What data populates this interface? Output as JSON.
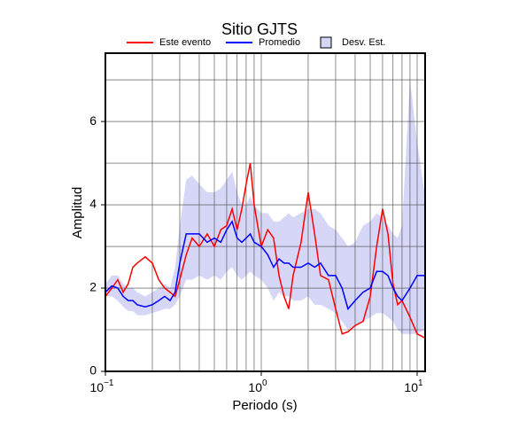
{
  "chart_data": {
    "type": "line",
    "title": "Sitio GJTS",
    "x_label": "Periodo (s)",
    "y_label": "Amplitud",
    "log_x": true,
    "grid": true,
    "xlim": [
      0.1,
      11.25
    ],
    "ylim": [
      0,
      7.64
    ],
    "xticks": [
      {
        "value": 0.1,
        "label": "10",
        "exponent": "−1"
      },
      {
        "value": 1,
        "label": "10",
        "exponent": "0"
      },
      {
        "value": 10,
        "label": "10",
        "exponent": "1"
      }
    ],
    "yticks": [
      0,
      2,
      4,
      6
    ],
    "xgrid": [
      0.2,
      0.3,
      0.4,
      0.5,
      0.6,
      0.7,
      0.8,
      0.9,
      2,
      3,
      4,
      5,
      6,
      7,
      8,
      9
    ],
    "ygrid": [
      1,
      3,
      5,
      7
    ],
    "x": [
      0.1,
      0.11,
      0.12,
      0.13,
      0.14,
      0.15,
      0.16,
      0.18,
      0.2,
      0.22,
      0.24,
      0.26,
      0.28,
      0.3,
      0.33,
      0.36,
      0.4,
      0.45,
      0.5,
      0.55,
      0.6,
      0.65,
      0.7,
      0.75,
      0.8,
      0.85,
      0.9,
      1.0,
      1.1,
      1.2,
      1.3,
      1.4,
      1.5,
      1.6,
      1.8,
      2.0,
      2.2,
      2.4,
      2.7,
      3.0,
      3.3,
      3.6,
      4.0,
      4.5,
      5.0,
      5.5,
      6.0,
      6.5,
      7.0,
      7.5,
      8.0,
      9.0,
      10,
      11.25
    ],
    "band": {
      "name": "Desv. Est.",
      "color": "#d6d6f7",
      "upper": [
        2.1,
        2.3,
        2.3,
        2.1,
        2.0,
        2.0,
        1.9,
        1.8,
        1.9,
        2.0,
        2.1,
        2.0,
        2.5,
        3.5,
        4.6,
        4.7,
        4.5,
        4.3,
        4.3,
        4.4,
        4.6,
        4.8,
        4.3,
        4.0,
        4.0,
        4.2,
        4.0,
        3.8,
        3.8,
        3.6,
        3.6,
        3.7,
        3.8,
        3.7,
        3.8,
        3.9,
        3.9,
        3.8,
        3.5,
        3.4,
        3.2,
        3.0,
        3.1,
        3.5,
        3.6,
        3.8,
        3.7,
        3.5,
        3.3,
        3.2,
        3.5,
        7.0,
        5.5,
        4.2
      ],
      "lower": [
        1.8,
        1.8,
        1.7,
        1.55,
        1.45,
        1.45,
        1.35,
        1.35,
        1.4,
        1.45,
        1.5,
        1.5,
        1.6,
        1.8,
        2.2,
        2.2,
        2.3,
        2.2,
        2.3,
        2.2,
        2.4,
        2.5,
        2.3,
        2.2,
        2.3,
        2.4,
        2.3,
        2.2,
        2.0,
        1.7,
        1.9,
        1.8,
        1.8,
        1.7,
        1.7,
        1.8,
        1.6,
        1.6,
        1.5,
        1.4,
        1.2,
        1.0,
        1.1,
        1.2,
        1.3,
        1.4,
        1.4,
        1.3,
        1.2,
        1.0,
        0.9,
        0.9,
        0.9,
        1.0
      ]
    },
    "series": [
      {
        "name": "Este evento",
        "color": "#ff0000",
        "values": [
          1.8,
          2.0,
          2.2,
          1.9,
          2.1,
          2.5,
          2.6,
          2.75,
          2.6,
          2.2,
          2.0,
          1.9,
          1.8,
          2.2,
          2.8,
          3.2,
          3.0,
          3.3,
          3.0,
          3.4,
          3.5,
          3.9,
          3.4,
          3.9,
          4.5,
          5.0,
          4.0,
          3.0,
          3.4,
          3.2,
          2.3,
          1.8,
          1.5,
          2.3,
          3.1,
          4.3,
          3.3,
          2.3,
          2.2,
          1.5,
          0.9,
          0.95,
          1.1,
          1.2,
          1.8,
          3.0,
          3.9,
          3.3,
          2.1,
          1.6,
          1.7,
          1.3,
          0.9,
          0.8
        ]
      },
      {
        "name": "Promedio",
        "color": "#0000ff",
        "values": [
          1.9,
          2.05,
          2.0,
          1.8,
          1.7,
          1.7,
          1.6,
          1.55,
          1.6,
          1.7,
          1.8,
          1.7,
          1.9,
          2.6,
          3.3,
          3.3,
          3.3,
          3.1,
          3.2,
          3.1,
          3.4,
          3.6,
          3.2,
          3.1,
          3.2,
          3.3,
          3.1,
          3.0,
          2.8,
          2.5,
          2.7,
          2.6,
          2.6,
          2.5,
          2.5,
          2.6,
          2.5,
          2.6,
          2.3,
          2.3,
          2.0,
          1.5,
          1.7,
          1.9,
          2.0,
          2.4,
          2.4,
          2.3,
          2.0,
          1.8,
          1.7,
          2.0,
          2.3,
          2.3
        ]
      }
    ]
  }
}
